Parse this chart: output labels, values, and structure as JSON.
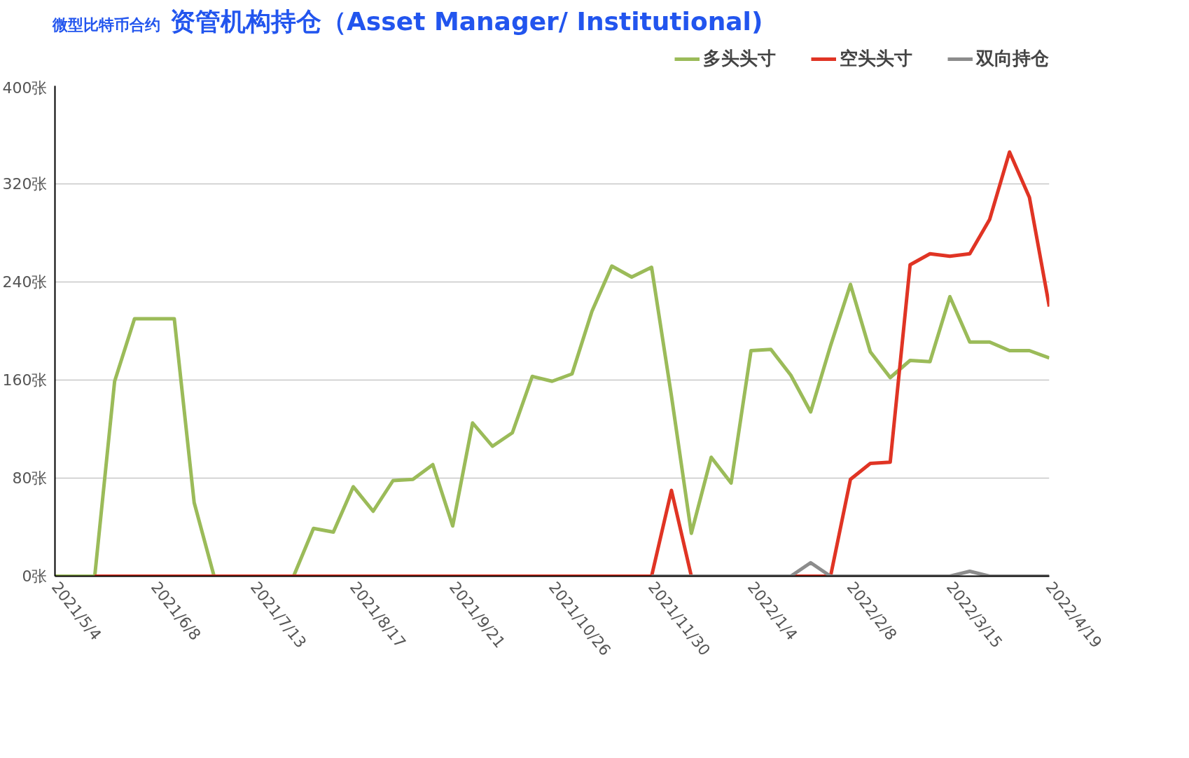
{
  "chart_data": {
    "type": "line",
    "title": "资管机构持仓（Asset Manager/ Institutional)",
    "subtitle": "微型比特币合约",
    "x": [
      "2021-05-04",
      "2021-05-11",
      "2021-05-18",
      "2021-05-25",
      "2021-06-01",
      "2021-06-08",
      "2021-06-15",
      "2021-06-22",
      "2021-06-29",
      "2021-07-06",
      "2021-07-13",
      "2021-07-20",
      "2021-07-27",
      "2021-08-03",
      "2021-08-10",
      "2021-08-17",
      "2021-08-24",
      "2021-08-31",
      "2021-09-07",
      "2021-09-14",
      "2021-09-21",
      "2021-09-28",
      "2021-10-05",
      "2021-10-12",
      "2021-10-19",
      "2021-10-26",
      "2021-11-02",
      "2021-11-09",
      "2021-11-16",
      "2021-11-23",
      "2021-11-30",
      "2021-12-07",
      "2021-12-14",
      "2021-12-21",
      "2021-12-28",
      "2022-01-04",
      "2022-01-11",
      "2022-01-18",
      "2022-01-25",
      "2022-02-01",
      "2022-02-08",
      "2022-02-15",
      "2022-02-22",
      "2022-03-01",
      "2022-03-08",
      "2022-03-15",
      "2022-03-22",
      "2022-03-29",
      "2022-04-05",
      "2022-04-12",
      "2022-04-19"
    ],
    "series": [
      {
        "name": "多头头寸",
        "color": "#9bbb59",
        "values": [
          0,
          0,
          0,
          159,
          210,
          210,
          210,
          60,
          0,
          0,
          0,
          0,
          0,
          39,
          36,
          73,
          53,
          78,
          79,
          91,
          41,
          125,
          106,
          117,
          163,
          159,
          165,
          216,
          253,
          244,
          252,
          147,
          35,
          97,
          76,
          184,
          185,
          164,
          134,
          188,
          238,
          183,
          162,
          176,
          175,
          228,
          191,
          191,
          184,
          184,
          178
        ]
      },
      {
        "name": "空头头寸",
        "color": "#e03424",
        "values": [
          null,
          null,
          0,
          0,
          0,
          0,
          0,
          0,
          0,
          0,
          0,
          0,
          0,
          0,
          0,
          0,
          0,
          0,
          0,
          0,
          0,
          0,
          0,
          0,
          0,
          0,
          0,
          0,
          0,
          0,
          0,
          70,
          0,
          0,
          0,
          0,
          0,
          0,
          0,
          0,
          79,
          92,
          93,
          254,
          263,
          261,
          263,
          291,
          346,
          309,
          220
        ]
      },
      {
        "name": "双向持仓",
        "color": "#8c8c8c",
        "values": [
          null,
          null,
          null,
          null,
          null,
          null,
          null,
          null,
          null,
          null,
          null,
          null,
          null,
          null,
          null,
          null,
          null,
          null,
          null,
          null,
          null,
          null,
          null,
          null,
          null,
          null,
          null,
          null,
          null,
          null,
          0,
          0,
          0,
          0,
          0,
          0,
          0,
          0,
          11,
          0,
          0,
          0,
          0,
          0,
          0,
          0,
          4,
          0,
          0,
          0,
          0
        ]
      }
    ],
    "xlim": [
      "2021-05-04",
      "2022-04-19"
    ],
    "xticks": [
      {
        "value": "2021-05-04",
        "label": "2021/5/4"
      },
      {
        "value": "2021-06-08",
        "label": "2021/6/8"
      },
      {
        "value": "2021-07-13",
        "label": "2021/7/13"
      },
      {
        "value": "2021-08-17",
        "label": "2021/8/17"
      },
      {
        "value": "2021-09-21",
        "label": "2021/9/21"
      },
      {
        "value": "2021-10-26",
        "label": "2021/10/26"
      },
      {
        "value": "2021-11-30",
        "label": "2021/11/30"
      },
      {
        "value": "2022-01-04",
        "label": "2022/1/4"
      },
      {
        "value": "2022-02-08",
        "label": "2022/2/8"
      },
      {
        "value": "2022-03-15",
        "label": "2022/3/15"
      },
      {
        "value": "2022-04-19",
        "label": "2022/4/19"
      }
    ],
    "ylim": [
      0,
      400
    ],
    "yticks": [
      {
        "value": 0,
        "label": "0张"
      },
      {
        "value": 80,
        "label": "80张"
      },
      {
        "value": 160,
        "label": "160张"
      },
      {
        "value": 240,
        "label": "240张"
      },
      {
        "value": 320,
        "label": "320张"
      },
      {
        "value": 400,
        "label": "400张"
      }
    ],
    "grid": "y",
    "legend": "top right",
    "marker": "none",
    "line_style": "solid"
  }
}
